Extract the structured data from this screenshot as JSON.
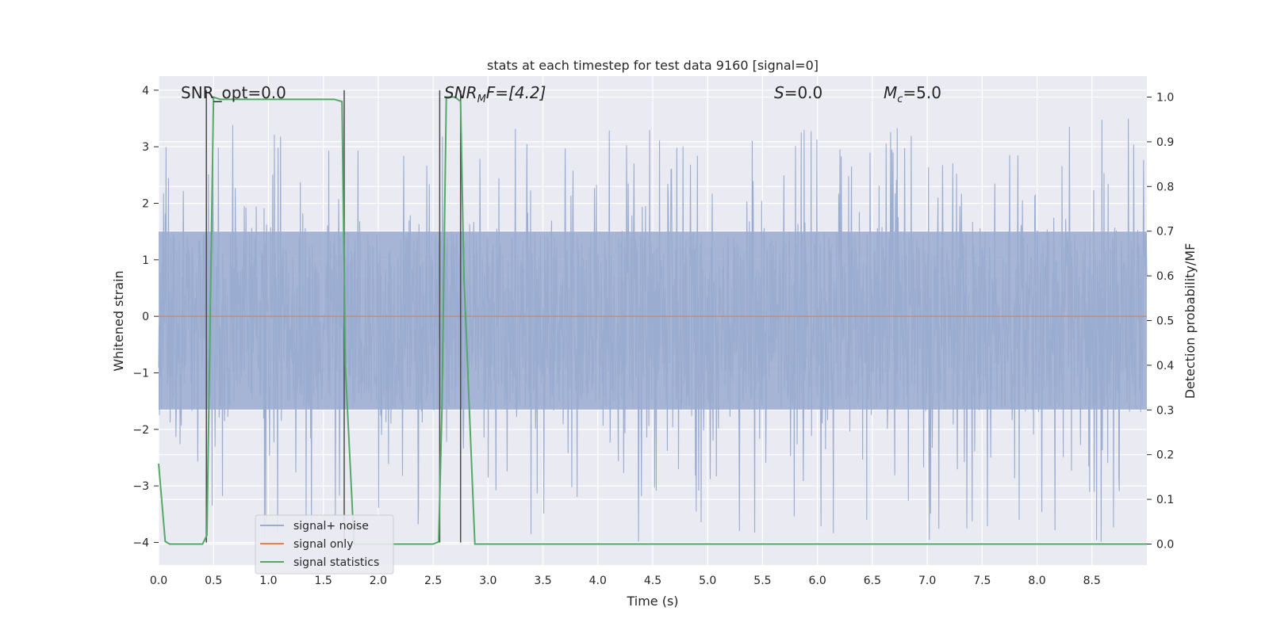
{
  "chart_data": {
    "type": "line",
    "title": "stats at each timestep for test data 9160 [signal=0]",
    "xlabel": "Time (s)",
    "ylabel": "Whitened strain",
    "y2label": "Detection probability/MF",
    "xlim": [
      0.0,
      9.0
    ],
    "ylim": [
      -4.4,
      4.25
    ],
    "y2lim": [
      -0.047,
      1.047
    ],
    "xticks": [
      0.0,
      0.5,
      1.0,
      1.5,
      2.0,
      2.5,
      3.0,
      3.5,
      4.0,
      4.5,
      5.0,
      5.5,
      6.0,
      6.5,
      7.0,
      7.5,
      8.0,
      8.5
    ],
    "xtick_labels": [
      "0.0",
      "0.5",
      "1.0",
      "1.5",
      "2.0",
      "2.5",
      "3.0",
      "3.5",
      "4.0",
      "4.5",
      "5.0",
      "5.5",
      "6.0",
      "6.5",
      "7.0",
      "7.5",
      "8.0",
      "8.5"
    ],
    "yticks": [
      4,
      3,
      2,
      1,
      0,
      -1,
      -2,
      -3,
      -4
    ],
    "ytick_labels": [
      "4",
      "3",
      "2",
      "1",
      "0",
      "−1",
      "−2",
      "−3",
      "−4"
    ],
    "y2ticks": [
      1.0,
      0.9,
      0.8,
      0.7,
      0.6,
      0.5,
      0.4,
      0.3,
      0.2,
      0.1,
      0.0
    ],
    "y2tick_labels": [
      "1.0",
      "0.9",
      "0.8",
      "0.7",
      "0.6",
      "0.5",
      "0.4",
      "0.3",
      "0.2",
      "0.1",
      "0.0"
    ],
    "grid": true,
    "legend_position": "lower-left",
    "annotations": {
      "snr_opt": "SNR_opt=0.0",
      "snr_mf_main": "SNR",
      "snr_mf_sub": "M",
      "snr_mf_rest": "F=[4.2]",
      "s_main": "S",
      "s_rest": "=0.0",
      "mc_main": "M",
      "mc_sub": "c",
      "mc_rest": "=5.0"
    },
    "series": [
      {
        "name": "signal+ noise",
        "color": "#9aacd0",
        "note": "whitened strain noise, roughly uniform amplitude ~1.5 with peaks to ~3.5",
        "amplitude_band": [
          -1.65,
          1.5
        ],
        "peak_range": [
          -4.0,
          3.5
        ]
      },
      {
        "name": "signal only",
        "color": "#dd8452",
        "values_constant": 0.0
      },
      {
        "name": "signal statistics",
        "color": "#55a868",
        "x": [
          0.0,
          0.06,
          0.1,
          0.4,
          0.44,
          0.5,
          0.56,
          0.8,
          1.6,
          1.67,
          1.7,
          1.78,
          1.9,
          2.0,
          2.5,
          2.55,
          2.58,
          2.62,
          2.7,
          2.75,
          2.78,
          2.88,
          3.0,
          9.0
        ],
        "y": [
          0.18,
          0.006,
          0.0,
          0.0,
          0.02,
          1.0,
          0.995,
          0.995,
          0.995,
          0.99,
          0.4,
          0.0,
          0.0,
          0.0,
          0.0,
          0.005,
          0.3,
          1.0,
          1.0,
          0.99,
          0.6,
          0.0,
          0.0,
          0.0
        ]
      }
    ],
    "markers": {
      "color": "#4a4a4a",
      "lines": [
        {
          "x": 0.435,
          "y_from": -4.0,
          "y_to": 4.0
        },
        {
          "x": 1.69,
          "y_from": -4.0,
          "y_to": 4.0
        },
        {
          "x": 2.56,
          "y_from": -4.0,
          "y_to": 4.0
        },
        {
          "x": 2.75,
          "y_from": -4.0,
          "y_to": 4.0
        }
      ]
    },
    "colors": {
      "plot_background": "#eaeaf2",
      "grid": "#ffffff",
      "text": "#262626"
    }
  }
}
